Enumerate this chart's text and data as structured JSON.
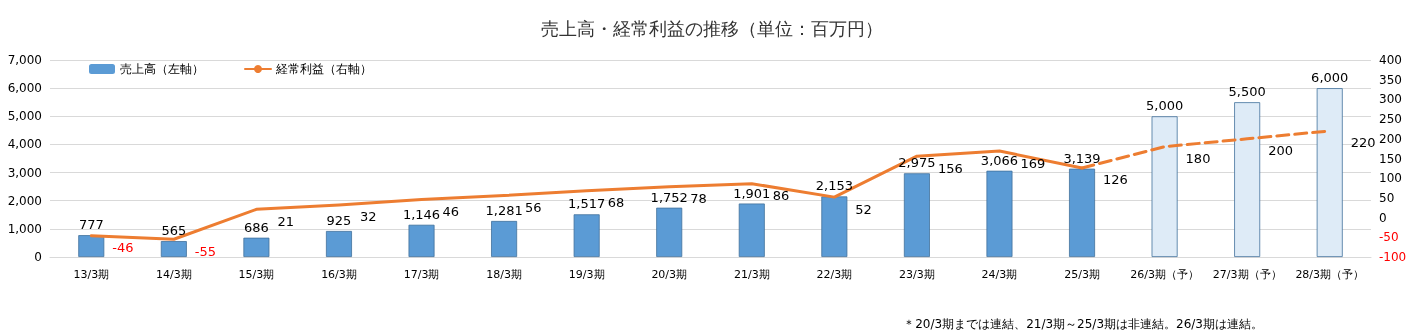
{
  "chart_data": {
    "type": "bar",
    "title": "売上高・経常利益の推移（単位：百万円）",
    "categories": [
      "13/3期",
      "14/3期",
      "15/3期",
      "16/3期",
      "17/3期",
      "18/3期",
      "19/3期",
      "20/3期",
      "21/3期",
      "22/3期",
      "23/3期",
      "24/3期",
      "25/3期",
      "26/3期（予）",
      "27/3期（予）",
      "28/3期（予）"
    ],
    "series": [
      {
        "name": "売上高（左軸）",
        "color": "#5b9bd5",
        "colors": [
          "#5b9bd5",
          "#5b9bd5",
          "#5b9bd5",
          "#5b9bd5",
          "#5b9bd5",
          "#5b9bd5",
          "#5b9bd5",
          "#5b9bd5",
          "#5b9bd5",
          "#5b9bd5",
          "#5b9bd5",
          "#5b9bd5",
          "#5b9bd5",
          "#deebf7",
          "#deebf7",
          "#deebf7"
        ],
        "values": [
          777,
          565,
          686,
          925,
          1146,
          1281,
          1517,
          1752,
          1901,
          2153,
          2975,
          3066,
          3139,
          5000,
          5500,
          6000
        ],
        "value_labels": [
          "777",
          "565",
          "686",
          "925",
          "1,146",
          "1,281",
          "1,517",
          "1,752",
          "1,901",
          "2,153",
          "2,975",
          "3,066",
          "3,139",
          "5,000",
          "5,500",
          "6,000"
        ]
      },
      {
        "type": "line",
        "name": "経常利益（右軸）",
        "axis": "y2",
        "color": "#ed7d31",
        "line_style": "solid",
        "values": [
          -46,
          -55,
          21,
          32,
          46,
          56,
          68,
          78,
          86,
          52,
          156,
          169,
          126,
          null,
          null,
          null
        ],
        "value_labels": [
          "-46",
          "-55",
          "21",
          "32",
          "46",
          "56",
          "68",
          "78",
          "86",
          "52",
          "156",
          "169",
          "126",
          null,
          null,
          null
        ]
      },
      {
        "type": "line",
        "axis": "y2",
        "color": "#ed7d31",
        "line_style": "dashed",
        "values": [
          null,
          null,
          null,
          null,
          null,
          null,
          null,
          null,
          null,
          null,
          null,
          null,
          126,
          180,
          200,
          220
        ],
        "value_labels": [
          null,
          null,
          null,
          null,
          null,
          null,
          null,
          null,
          null,
          null,
          null,
          null,
          null,
          "180",
          "200",
          "220"
        ]
      }
    ],
    "ylim": [
      0,
      7000
    ],
    "yticks": [
      0,
      {
        "value": 1000,
        "label": "1,000"
      },
      {
        "value": 2000,
        "label": "2,000"
      },
      {
        "value": 3000,
        "label": "3,000"
      },
      {
        "value": 4000,
        "label": "4,000"
      },
      {
        "value": 5000,
        "label": "5,000"
      },
      {
        "value": 6000,
        "label": "6,000"
      },
      {
        "value": 7000,
        "label": "7,000"
      }
    ],
    "y2lim": [
      -100,
      400
    ],
    "y2ticks": [
      -100,
      -50,
      0,
      50,
      100,
      150,
      200,
      250,
      300,
      350,
      400
    ],
    "grid": "y",
    "legend": "top left",
    "marker": "none",
    "annotations": [
      "＊20/3期までは連結、21/3期～25/3期は非連結。26/3期は連結。"
    ]
  }
}
